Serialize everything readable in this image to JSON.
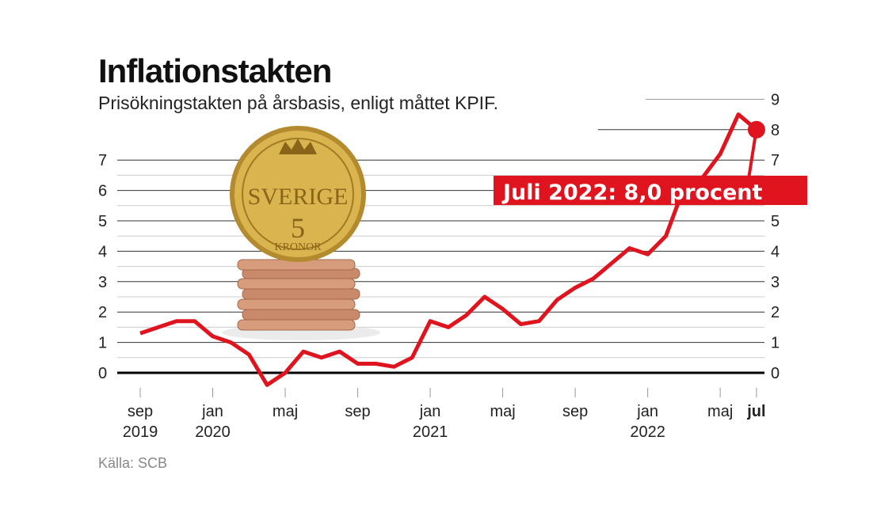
{
  "title": "Inflationstakten",
  "subtitle": "Prisökningstakten på årsbasis, enligt måttet KPIF.",
  "source": "Källa: SCB",
  "annotation": "Juli 2022: 8,0 procent",
  "colors": {
    "line": "#e0141e",
    "annotation_bg": "#e0141e",
    "grid": "#333333",
    "minor_grid": "#cccccc"
  },
  "chart_data": {
    "type": "line",
    "title": "Inflationstakten",
    "ylabel": "",
    "xlabel": "",
    "ylim": [
      0,
      9
    ],
    "left_yticks": [
      "0",
      "1",
      "2",
      "3",
      "4",
      "5",
      "6",
      "7"
    ],
    "right_yticks": [
      "0",
      "1",
      "2",
      "3",
      "4",
      "5",
      "6",
      "7",
      "8",
      "9"
    ],
    "grid": true,
    "x_start": "2019-09",
    "x_end": "2022-07",
    "xticks": [
      {
        "month": "2019-09",
        "label": "sep",
        "year": "2019"
      },
      {
        "month": "2020-01",
        "label": "jan",
        "year": "2020"
      },
      {
        "month": "2020-05",
        "label": "maj",
        "year": ""
      },
      {
        "month": "2020-09",
        "label": "sep",
        "year": ""
      },
      {
        "month": "2021-01",
        "label": "jan",
        "year": "2021"
      },
      {
        "month": "2021-05",
        "label": "maj",
        "year": ""
      },
      {
        "month": "2021-09",
        "label": "sep",
        "year": ""
      },
      {
        "month": "2022-01",
        "label": "jan",
        "year": "2022"
      },
      {
        "month": "2022-05",
        "label": "maj",
        "year": ""
      },
      {
        "month": "2022-07",
        "label": "jul",
        "year": "",
        "bold": true
      }
    ],
    "series": [
      {
        "x": [
          "2019-09",
          "2019-10",
          "2019-11",
          "2019-12",
          "2020-01",
          "2020-02",
          "2020-03",
          "2020-04",
          "2020-05",
          "2020-06",
          "2020-07",
          "2020-08",
          "2020-09",
          "2020-10",
          "2020-11",
          "2020-12",
          "2021-01",
          "2021-02",
          "2021-03",
          "2021-04",
          "2021-05",
          "2021-06",
          "2021-07",
          "2021-08",
          "2021-09",
          "2021-10",
          "2021-11",
          "2021-12",
          "2022-01",
          "2022-02",
          "2022-03",
          "2022-04",
          "2022-05",
          "2022-06",
          "2022-07"
        ],
        "values": [
          1.3,
          1.5,
          1.7,
          1.7,
          1.2,
          1.0,
          0.6,
          -0.4,
          0.0,
          0.7,
          0.5,
          0.7,
          0.3,
          0.3,
          0.2,
          0.5,
          1.7,
          1.5,
          1.9,
          2.5,
          2.1,
          1.6,
          1.7,
          2.4,
          2.8,
          3.1,
          3.6,
          4.1,
          3.9,
          4.5,
          6.1,
          6.4,
          7.2,
          8.5,
          8.0
        ]
      }
    ]
  }
}
